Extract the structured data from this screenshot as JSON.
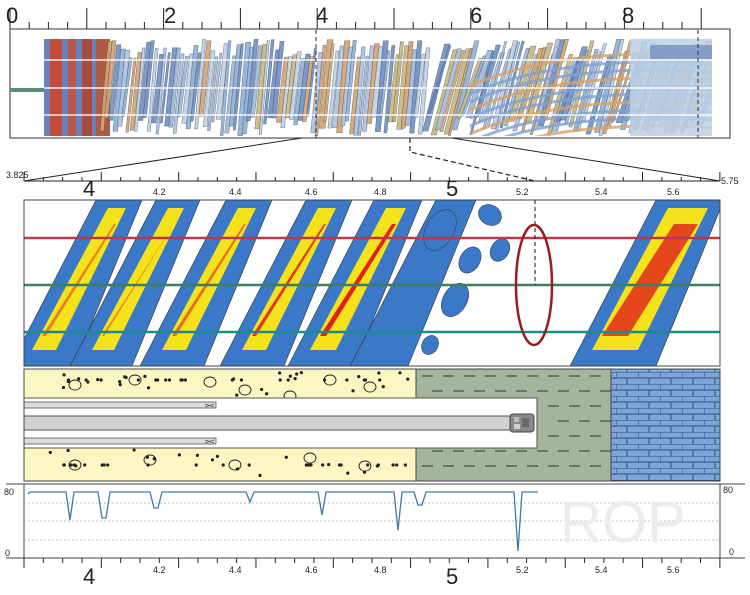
{
  "top_scale": {
    "major_labels": [
      "0",
      "2",
      "4",
      "6",
      "8"
    ]
  },
  "detail_range": {
    "start_label": "3.825",
    "end_label": "5.75"
  },
  "detail_scale": {
    "big_labels": [
      "4",
      "5"
    ],
    "small_labels": [
      "4.2",
      "4.4",
      "4.6",
      "4.8",
      "5.2",
      "5.4",
      "5.6"
    ]
  },
  "rop_panel": {
    "watermark": "ROP",
    "y_max_label": "80",
    "y_min_label": "0",
    "trace_color": "#3d7aa7"
  },
  "bottom_scale": {
    "big_labels": [
      "4",
      "5"
    ],
    "small_labels": [
      "4.2",
      "4.4",
      "4.6",
      "4.8",
      "5.2",
      "5.4",
      "5.6"
    ]
  },
  "colors": {
    "sandstone": "#fcf6c3",
    "shale": "#a3b59a",
    "limestone": "#7da6d8",
    "scan_blue": "#3b78c8",
    "scan_yellow": "#f4e21a",
    "scan_red": "#e0201c",
    "line_red": "#b8384d",
    "line_green": "#3f7d62",
    "line_teal": "#1e8a8a",
    "ellipse": "#9a1c1c"
  }
}
